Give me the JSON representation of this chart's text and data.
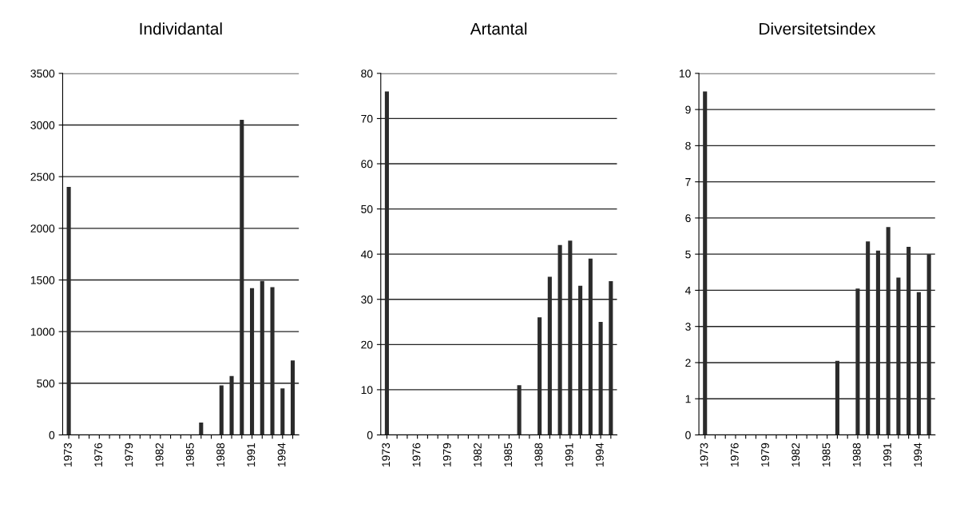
{
  "chart_data": [
    {
      "type": "bar",
      "title": "Individantal",
      "categories": [
        "1973",
        null,
        null,
        "1976",
        null,
        null,
        "1979",
        null,
        null,
        "1982",
        null,
        null,
        "1985",
        null,
        null,
        "1988",
        null,
        null,
        "1991",
        null,
        null,
        "1994",
        null
      ],
      "values": [
        2400,
        0,
        0,
        0,
        0,
        0,
        0,
        0,
        0,
        0,
        0,
        0,
        0,
        120,
        0,
        480,
        570,
        3050,
        1420,
        1490,
        1430,
        450,
        720
      ],
      "color": "#2b2b2b",
      "ylim": [
        0,
        3500
      ],
      "yticks": [
        0,
        500,
        1000,
        1500,
        2000,
        2500,
        3000,
        3500
      ],
      "grid": "y"
    },
    {
      "type": "bar",
      "title": "Artantal",
      "categories": [
        "1973",
        null,
        null,
        "1976",
        null,
        null,
        "1979",
        null,
        null,
        "1982",
        null,
        null,
        "1985",
        null,
        null,
        "1988",
        null,
        null,
        "1991",
        null,
        null,
        "1994",
        null
      ],
      "values": [
        76,
        0,
        0,
        0,
        0,
        0,
        0,
        0,
        0,
        0,
        0,
        0,
        0,
        11,
        0,
        26,
        35,
        42,
        43,
        33,
        39,
        25,
        34
      ],
      "color": "#2b2b2b",
      "ylim": [
        0,
        80
      ],
      "yticks": [
        0,
        10,
        20,
        30,
        40,
        50,
        60,
        70,
        80
      ],
      "grid": "y"
    },
    {
      "type": "bar",
      "title": "Diversitetsindex",
      "categories": [
        "1973",
        null,
        null,
        "1976",
        null,
        null,
        "1979",
        null,
        null,
        "1982",
        null,
        null,
        "1985",
        null,
        null,
        "1988",
        null,
        null,
        "1991",
        null,
        null,
        "1994",
        null
      ],
      "values": [
        9.5,
        0,
        0,
        0,
        0,
        0,
        0,
        0,
        0,
        0,
        0,
        0,
        0,
        2.05,
        0,
        4.05,
        5.35,
        5.1,
        5.75,
        4.35,
        5.2,
        3.95,
        5.0
      ],
      "color": "#2b2b2b",
      "ylim": [
        0,
        10
      ],
      "yticks": [
        0,
        1,
        2,
        3,
        4,
        5,
        6,
        7,
        8,
        9,
        10
      ],
      "grid": "y"
    }
  ]
}
